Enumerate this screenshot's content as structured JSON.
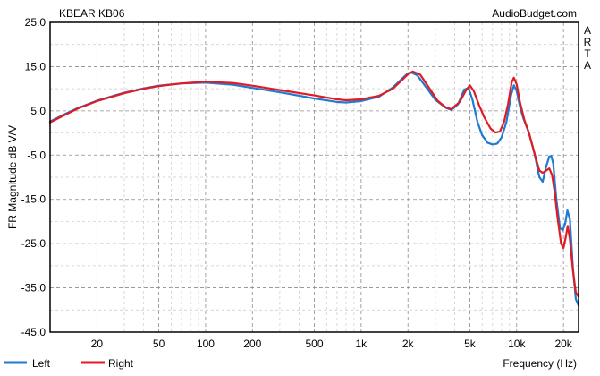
{
  "chart_data": {
    "type": "line",
    "title": "KBEAR KB06",
    "source": "AudioBudget.com",
    "watermark": "ARTA",
    "xlabel": "Frequency (Hz)",
    "ylabel": "FR Magnitude dB V/V",
    "x_scale": "log",
    "xlim": [
      10,
      25000
    ],
    "ylim": [
      -45,
      25
    ],
    "y_ticks": [
      "25.0",
      "15.0",
      "5.0",
      "-5.0",
      "-15.0",
      "-25.0",
      "-35.0",
      "-45.0"
    ],
    "y_tick_values": [
      25,
      15,
      5,
      -5,
      -15,
      -25,
      -35,
      -45
    ],
    "x_ticks": [
      "20",
      "50",
      "100",
      "200",
      "500",
      "1k",
      "2k",
      "5k",
      "10k",
      "20k"
    ],
    "x_tick_values": [
      20,
      50,
      100,
      200,
      500,
      1000,
      2000,
      5000,
      10000,
      20000
    ],
    "grid": true,
    "legend_position": "bottom-left",
    "series": [
      {
        "name": "Left",
        "color": "#1f7ad4",
        "points": [
          [
            10,
            2.6
          ],
          [
            12,
            4.0
          ],
          [
            15,
            5.6
          ],
          [
            20,
            7.3
          ],
          [
            30,
            9.1
          ],
          [
            40,
            10.1
          ],
          [
            50,
            10.7
          ],
          [
            70,
            11.2
          ],
          [
            100,
            11.4
          ],
          [
            150,
            10.9
          ],
          [
            200,
            10.2
          ],
          [
            300,
            9.2
          ],
          [
            500,
            7.8
          ],
          [
            700,
            7.0
          ],
          [
            800,
            6.9
          ],
          [
            1000,
            7.2
          ],
          [
            1300,
            8.2
          ],
          [
            1600,
            10.3
          ],
          [
            1900,
            12.8
          ],
          [
            2000,
            13.5
          ],
          [
            2100,
            13.7
          ],
          [
            2300,
            13.0
          ],
          [
            2600,
            10.5
          ],
          [
            3000,
            7.5
          ],
          [
            3500,
            5.7
          ],
          [
            3800,
            5.2
          ],
          [
            4200,
            6.5
          ],
          [
            4600,
            9.8
          ],
          [
            4900,
            10.2
          ],
          [
            5200,
            7.5
          ],
          [
            5600,
            2.5
          ],
          [
            6000,
            -0.5
          ],
          [
            6500,
            -2.2
          ],
          [
            7000,
            -2.6
          ],
          [
            7500,
            -2.4
          ],
          [
            8000,
            -1.0
          ],
          [
            8600,
            2.5
          ],
          [
            9200,
            8.5
          ],
          [
            9600,
            10.8
          ],
          [
            10000,
            9.5
          ],
          [
            10500,
            6.0
          ],
          [
            11000,
            3.5
          ],
          [
            12000,
            0.0
          ],
          [
            13000,
            -4.5
          ],
          [
            14000,
            -10.0
          ],
          [
            14700,
            -11.0
          ],
          [
            15500,
            -7.5
          ],
          [
            16200,
            -5.3
          ],
          [
            16700,
            -5.2
          ],
          [
            17200,
            -7.0
          ],
          [
            18000,
            -15.0
          ],
          [
            19000,
            -21.5
          ],
          [
            19800,
            -22.0
          ],
          [
            20500,
            -20.5
          ],
          [
            21200,
            -17.5
          ],
          [
            22000,
            -19.5
          ],
          [
            23000,
            -30.5
          ],
          [
            24000,
            -37.5
          ],
          [
            25000,
            -39.0
          ]
        ]
      },
      {
        "name": "Right",
        "color": "#e11b22",
        "points": [
          [
            10,
            2.4
          ],
          [
            12,
            3.8
          ],
          [
            15,
            5.5
          ],
          [
            20,
            7.2
          ],
          [
            30,
            9.0
          ],
          [
            40,
            10.0
          ],
          [
            50,
            10.6
          ],
          [
            70,
            11.2
          ],
          [
            100,
            11.6
          ],
          [
            150,
            11.3
          ],
          [
            200,
            10.7
          ],
          [
            300,
            9.7
          ],
          [
            500,
            8.5
          ],
          [
            700,
            7.6
          ],
          [
            800,
            7.4
          ],
          [
            1000,
            7.6
          ],
          [
            1300,
            8.4
          ],
          [
            1600,
            10.0
          ],
          [
            1900,
            12.5
          ],
          [
            2000,
            13.3
          ],
          [
            2150,
            13.9
          ],
          [
            2400,
            13.2
          ],
          [
            2700,
            10.5
          ],
          [
            3100,
            7.3
          ],
          [
            3500,
            5.8
          ],
          [
            3800,
            5.4
          ],
          [
            4300,
            7.0
          ],
          [
            4700,
            9.5
          ],
          [
            5000,
            10.8
          ],
          [
            5300,
            9.5
          ],
          [
            5700,
            6.5
          ],
          [
            6200,
            3.5
          ],
          [
            6800,
            1.0
          ],
          [
            7300,
            0.1
          ],
          [
            7800,
            0.3
          ],
          [
            8300,
            2.5
          ],
          [
            8800,
            6.5
          ],
          [
            9300,
            11.5
          ],
          [
            9600,
            12.5
          ],
          [
            10000,
            11.0
          ],
          [
            10500,
            7.0
          ],
          [
            11200,
            3.0
          ],
          [
            12000,
            0.0
          ],
          [
            13000,
            -4.5
          ],
          [
            14000,
            -8.5
          ],
          [
            14700,
            -9.0
          ],
          [
            15500,
            -8.5
          ],
          [
            16200,
            -8.0
          ],
          [
            16900,
            -9.5
          ],
          [
            17500,
            -13.0
          ],
          [
            18300,
            -19.0
          ],
          [
            19300,
            -25.0
          ],
          [
            20000,
            -26.0
          ],
          [
            20700,
            -23.5
          ],
          [
            21300,
            -21.0
          ],
          [
            22000,
            -24.0
          ],
          [
            23000,
            -31.0
          ],
          [
            24000,
            -36.0
          ],
          [
            25000,
            -37.0
          ]
        ]
      }
    ]
  }
}
